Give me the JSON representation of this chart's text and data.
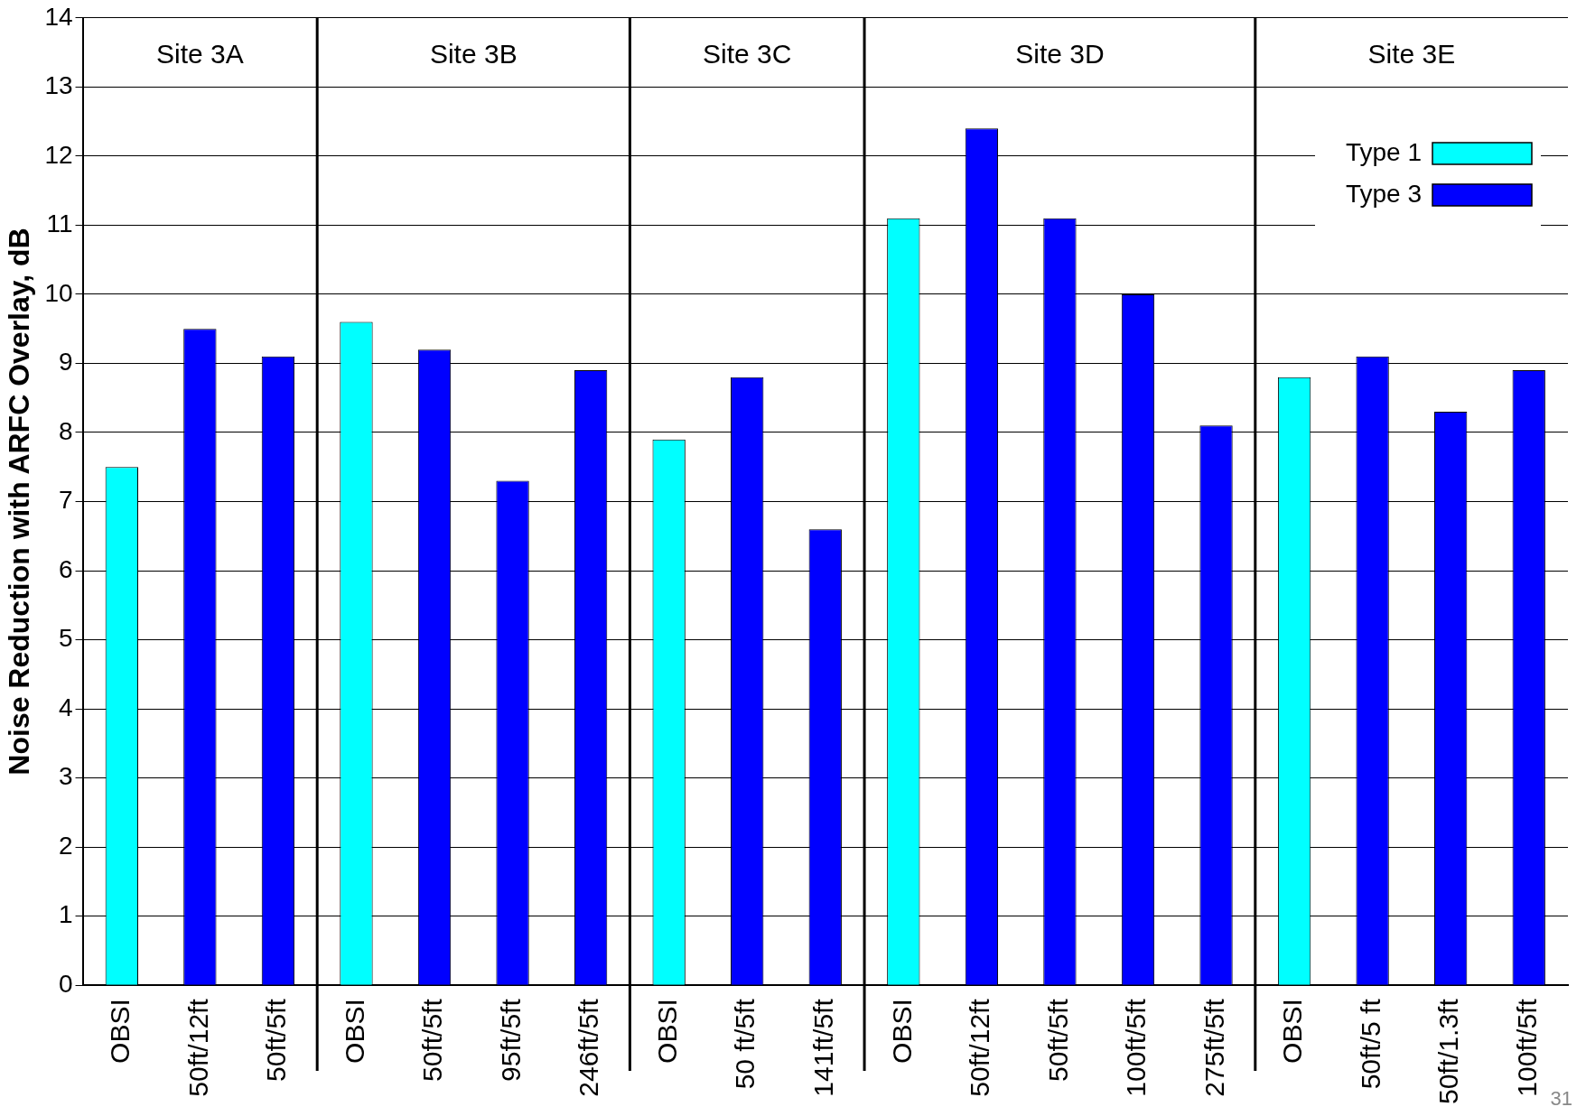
{
  "chart_data": {
    "type": "bar",
    "ylabel": "Noise Reduction with ARFC Overlay, dB",
    "categories": [
      "OBSI",
      "50ft/12ft",
      "50ft/5ft",
      "OBSI",
      "50ft/5ft",
      "95ft/5ft",
      "246ft/5ft",
      "OBSI",
      "50 ft/5ft",
      "141ft/5ft",
      "OBSI",
      "50ft/12ft",
      "50ft/5ft",
      "100ft/5ft",
      "275ft/5ft",
      "OBSI",
      "50ft/5 ft",
      "50ft/1.3ft",
      "100ft/5ft"
    ],
    "series": [
      {
        "name": "Type 1",
        "color": "#00ffff",
        "values": [
          7.5,
          null,
          null,
          9.6,
          null,
          null,
          null,
          7.9,
          null,
          null,
          11.1,
          null,
          null,
          null,
          null,
          8.8,
          null,
          null,
          null
        ]
      },
      {
        "name": "Type 3",
        "color": "#0000ff",
        "values": [
          null,
          9.5,
          9.1,
          null,
          9.2,
          7.3,
          8.9,
          null,
          8.8,
          6.6,
          null,
          12.4,
          11.1,
          10.0,
          8.1,
          null,
          9.1,
          8.3,
          8.9
        ]
      }
    ],
    "ylim": [
      0,
      14
    ],
    "yticks": [
      0,
      1,
      2,
      3,
      4,
      5,
      6,
      7,
      8,
      9,
      10,
      11,
      12,
      13,
      14
    ],
    "grid": "y",
    "legend": "top right",
    "annotations": [
      "Site 3A",
      "Site 3B",
      "Site 3C",
      "Site 3D",
      "Site 3E",
      "31"
    ]
  }
}
